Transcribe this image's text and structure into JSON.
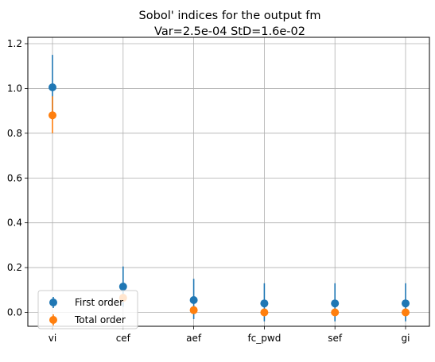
{
  "chart_data": {
    "type": "scatter",
    "title": "Sobol' indices for the output fm",
    "subtitle": "Var=2.5e-04    StD=1.6e-02",
    "xlabel": "",
    "ylabel": "",
    "categories": [
      "vi",
      "cef",
      "aef",
      "fc_pwd",
      "sef",
      "gi"
    ],
    "ylim": [
      -0.1,
      1.21
    ],
    "yticks": [
      0.0,
      0.2,
      0.4,
      0.6,
      0.8,
      1.0,
      1.2
    ],
    "ytick_labels": [
      "0.0",
      "0.2",
      "0.4",
      "0.6",
      "0.8",
      "1.0",
      "1.2"
    ],
    "grid": true,
    "legend_position": "bottom-left",
    "series": [
      {
        "name": "First order",
        "color": "#1f77b4",
        "values": [
          1.005,
          0.115,
          0.055,
          0.04,
          0.04,
          0.04
        ],
        "lower": [
          0.86,
          0.025,
          -0.03,
          -0.04,
          -0.04,
          -0.04
        ],
        "upper": [
          1.15,
          0.205,
          0.15,
          0.13,
          0.13,
          0.13
        ]
      },
      {
        "name": "Total order",
        "color": "#ff7f0e",
        "values": [
          0.88,
          0.065,
          0.01,
          0.0,
          0.0,
          0.0
        ],
        "lower": [
          0.8,
          0.055,
          -0.005,
          -0.005,
          -0.005,
          -0.005
        ],
        "upper": [
          0.965,
          0.075,
          0.025,
          0.005,
          0.005,
          0.005
        ]
      }
    ]
  }
}
